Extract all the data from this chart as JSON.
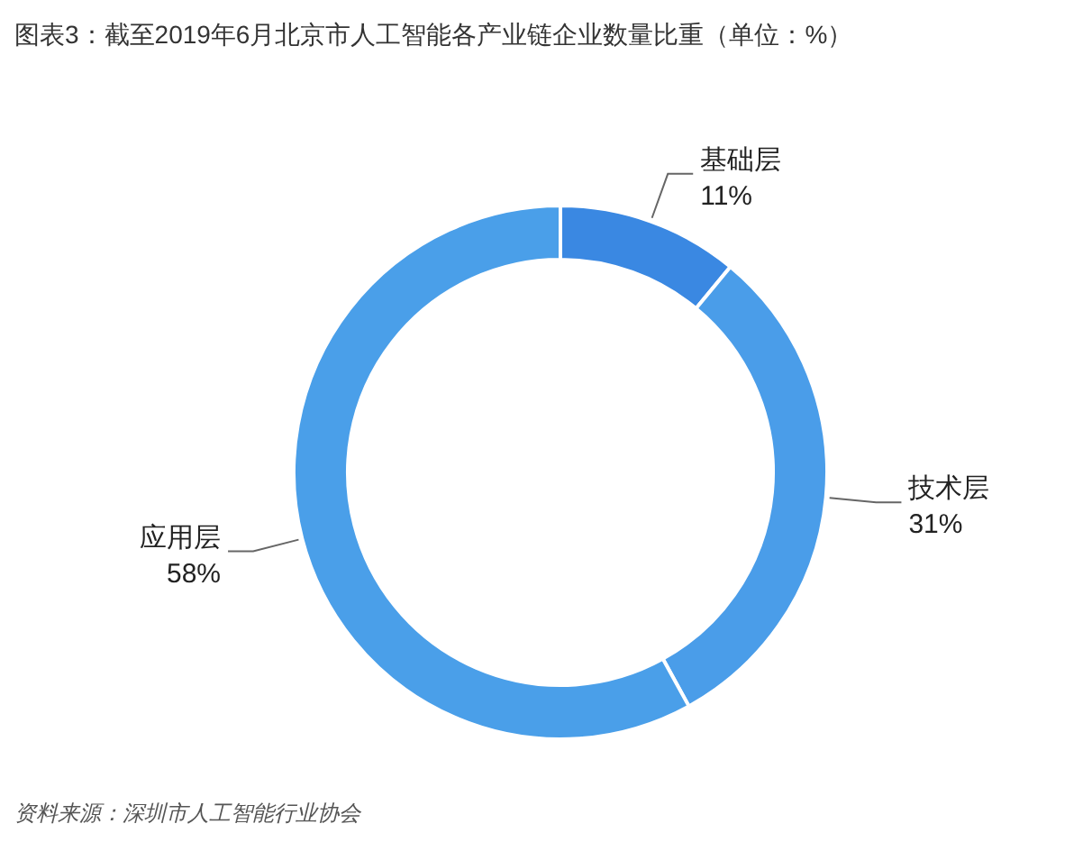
{
  "chart_data": {
    "type": "donut",
    "title": "图表3：截至2019年6月北京市人工智能各产业链企业数量比重（单位：%）",
    "categories": [
      "基础层",
      "技术层",
      "应用层"
    ],
    "values": [
      11,
      31,
      58
    ],
    "colors": [
      "#3a88e2",
      "#4a9de9",
      "#4a9fe9"
    ],
    "value_labels": [
      "11%",
      "31%",
      "58%"
    ],
    "annotations": [
      "资料来源：深圳市人工智能行业协会"
    ]
  }
}
